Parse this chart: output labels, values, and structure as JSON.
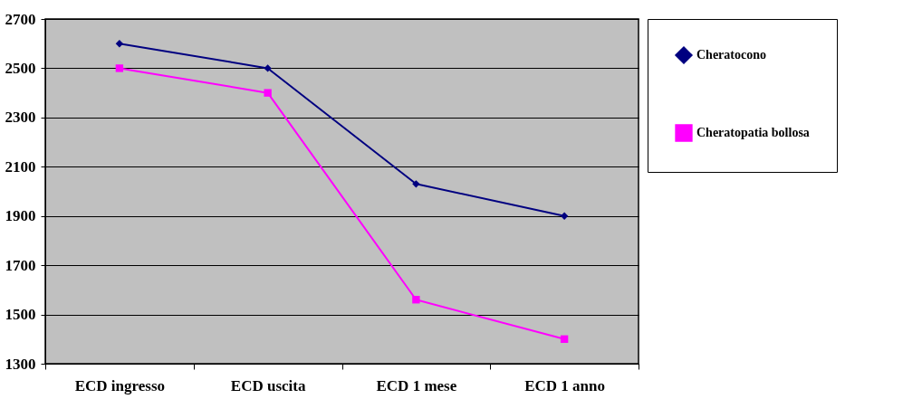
{
  "chart_data": {
    "type": "line",
    "categories": [
      "ECD ingresso",
      "ECD uscita",
      "ECD 1 mese",
      "ECD 1 anno"
    ],
    "series": [
      {
        "name": "Cheratocono",
        "color": "#000080",
        "marker": "diamond",
        "values": [
          2600,
          2500,
          2030,
          1900
        ]
      },
      {
        "name": "Cheratopatia bollosa",
        "color": "#ff00ff",
        "marker": "square",
        "values": [
          2500,
          2400,
          1560,
          1400
        ]
      }
    ],
    "ylim": [
      1300,
      2700
    ],
    "yticks": [
      1300,
      1500,
      1700,
      1900,
      2100,
      2300,
      2500,
      2700
    ],
    "grid": "y",
    "legend": "right"
  }
}
